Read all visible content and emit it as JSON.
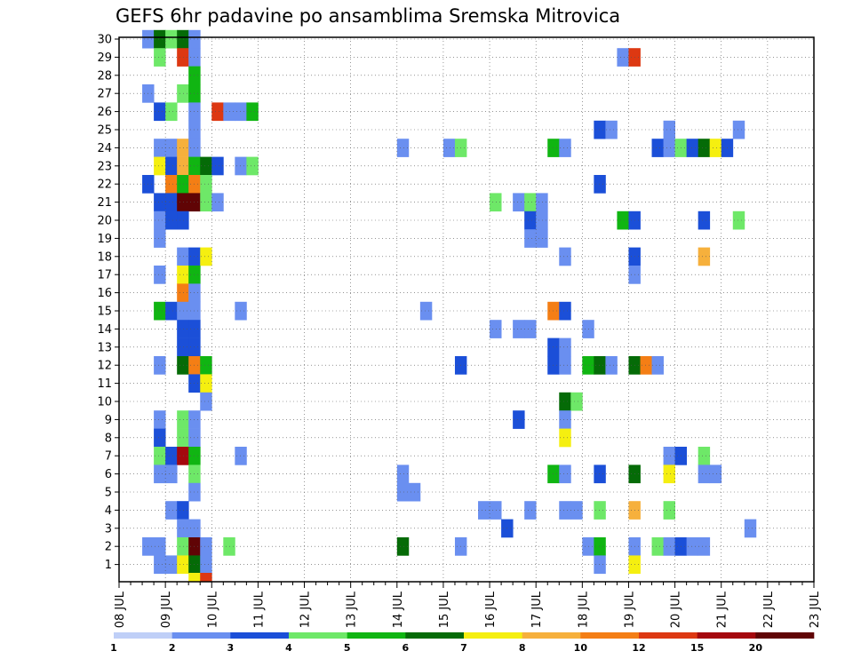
{
  "chart_data": {
    "type": "heatmap",
    "title": "GEFS 6hr padavine po ansamblima Sremska Mitrovica",
    "y_range": [
      1,
      30
    ],
    "y_ticks": [
      "1",
      "2",
      "3",
      "4",
      "5",
      "6",
      "7",
      "8",
      "9",
      "10",
      "11",
      "12",
      "13",
      "14",
      "15",
      "16",
      "17",
      "18",
      "19",
      "20",
      "21",
      "22",
      "23",
      "24",
      "25",
      "26",
      "27",
      "28",
      "29",
      "30"
    ],
    "x_range": [
      "08 JUL 00:00",
      "23 JUL 00:00"
    ],
    "x_step_hours": 6,
    "x_ticks": [
      "08 JUL",
      "09 JUL",
      "10 JUL",
      "11 JUL",
      "12 JUL",
      "13 JUL",
      "14 JUL",
      "15 JUL",
      "16 JUL",
      "17 JUL",
      "18 JUL",
      "19 JUL",
      "20 JUL",
      "21 JUL",
      "22 JUL",
      "23 JUL"
    ],
    "grid": true,
    "legend": {
      "position": "bottom",
      "labels": [
        "1",
        "2",
        "3",
        "4",
        "5",
        "6",
        "7",
        "8",
        "10",
        "12",
        "15",
        "20"
      ],
      "colors": [
        "#bfcff7",
        "#6a8ff0",
        "#1b4fd8",
        "#6ee868",
        "#10b512",
        "#056b07",
        "#f5ef10",
        "#f6b03c",
        "#f47e15",
        "#dd3812",
        "#a5080e",
        "#600405"
      ]
    },
    "cells": [
      [
        30,
        2,
        1
      ],
      [
        30,
        3,
        5
      ],
      [
        30,
        4,
        3
      ],
      [
        30,
        5,
        5
      ],
      [
        30,
        6,
        1
      ],
      [
        29,
        3,
        3
      ],
      [
        29,
        5,
        9
      ],
      [
        29,
        6,
        1
      ],
      [
        29,
        43,
        1
      ],
      [
        29,
        44,
        9
      ],
      [
        28,
        6,
        4
      ],
      [
        27,
        2,
        1
      ],
      [
        27,
        5,
        3
      ],
      [
        27,
        6,
        4
      ],
      [
        26,
        3,
        2
      ],
      [
        26,
        4,
        3
      ],
      [
        26,
        6,
        1
      ],
      [
        26,
        8,
        9
      ],
      [
        26,
        9,
        1
      ],
      [
        26,
        10,
        1
      ],
      [
        26,
        11,
        4
      ],
      [
        25,
        6,
        1
      ],
      [
        25,
        41,
        2
      ],
      [
        25,
        42,
        1
      ],
      [
        25,
        47,
        1
      ],
      [
        25,
        53,
        1
      ],
      [
        24,
        3,
        1
      ],
      [
        24,
        4,
        1
      ],
      [
        24,
        5,
        7
      ],
      [
        24,
        6,
        1
      ],
      [
        24,
        24,
        1
      ],
      [
        24,
        28,
        1
      ],
      [
        24,
        29,
        3
      ],
      [
        24,
        37,
        4
      ],
      [
        24,
        38,
        1
      ],
      [
        24,
        46,
        2
      ],
      [
        24,
        47,
        1
      ],
      [
        24,
        48,
        3
      ],
      [
        24,
        49,
        2
      ],
      [
        24,
        50,
        5
      ],
      [
        24,
        51,
        6
      ],
      [
        24,
        52,
        2
      ],
      [
        23,
        3,
        6
      ],
      [
        23,
        4,
        2
      ],
      [
        23,
        5,
        7
      ],
      [
        23,
        6,
        4
      ],
      [
        23,
        7,
        5
      ],
      [
        23,
        8,
        2
      ],
      [
        23,
        10,
        1
      ],
      [
        23,
        11,
        3
      ],
      [
        22,
        2,
        2
      ],
      [
        22,
        4,
        8
      ],
      [
        22,
        5,
        4
      ],
      [
        22,
        6,
        8
      ],
      [
        22,
        7,
        3
      ],
      [
        22,
        41,
        2
      ],
      [
        21,
        3,
        2
      ],
      [
        21,
        4,
        2
      ],
      [
        21,
        5,
        11
      ],
      [
        21,
        6,
        11
      ],
      [
        21,
        7,
        3
      ],
      [
        21,
        8,
        1
      ],
      [
        21,
        32,
        3
      ],
      [
        21,
        34,
        1
      ],
      [
        21,
        35,
        3
      ],
      [
        21,
        36,
        1
      ],
      [
        20,
        3,
        1
      ],
      [
        20,
        4,
        2
      ],
      [
        20,
        5,
        2
      ],
      [
        20,
        35,
        2
      ],
      [
        20,
        36,
        1
      ],
      [
        20,
        43,
        4
      ],
      [
        20,
        44,
        2
      ],
      [
        20,
        50,
        2
      ],
      [
        20,
        53,
        3
      ],
      [
        19,
        3,
        1
      ],
      [
        19,
        35,
        1
      ],
      [
        19,
        36,
        1
      ],
      [
        18,
        5,
        1
      ],
      [
        18,
        6,
        2
      ],
      [
        18,
        7,
        6
      ],
      [
        18,
        38,
        1
      ],
      [
        18,
        44,
        2
      ],
      [
        18,
        50,
        7
      ],
      [
        17,
        3,
        1
      ],
      [
        17,
        5,
        6
      ],
      [
        17,
        6,
        4
      ],
      [
        17,
        44,
        1
      ],
      [
        16,
        5,
        8
      ],
      [
        16,
        6,
        1
      ],
      [
        15,
        3,
        4
      ],
      [
        15,
        4,
        2
      ],
      [
        15,
        5,
        1
      ],
      [
        15,
        6,
        1
      ],
      [
        15,
        10,
        1
      ],
      [
        15,
        26,
        1
      ],
      [
        15,
        37,
        8
      ],
      [
        15,
        38,
        2
      ],
      [
        14,
        5,
        2
      ],
      [
        14,
        6,
        2
      ],
      [
        14,
        32,
        1
      ],
      [
        14,
        34,
        1
      ],
      [
        14,
        35,
        1
      ],
      [
        14,
        40,
        1
      ],
      [
        13,
        5,
        2
      ],
      [
        13,
        6,
        2
      ],
      [
        13,
        37,
        2
      ],
      [
        13,
        38,
        1
      ],
      [
        12,
        3,
        1
      ],
      [
        12,
        5,
        5
      ],
      [
        12,
        6,
        8
      ],
      [
        12,
        7,
        4
      ],
      [
        12,
        29,
        2
      ],
      [
        12,
        37,
        2
      ],
      [
        12,
        38,
        1
      ],
      [
        12,
        40,
        4
      ],
      [
        12,
        41,
        5
      ],
      [
        12,
        42,
        1
      ],
      [
        12,
        44,
        5
      ],
      [
        12,
        45,
        8
      ],
      [
        12,
        46,
        1
      ],
      [
        11,
        6,
        2
      ],
      [
        11,
        7,
        6
      ],
      [
        10,
        7,
        1
      ],
      [
        10,
        38,
        5
      ],
      [
        10,
        39,
        3
      ],
      [
        9,
        3,
        1
      ],
      [
        9,
        5,
        3
      ],
      [
        9,
        6,
        1
      ],
      [
        9,
        34,
        2
      ],
      [
        9,
        38,
        1
      ],
      [
        8,
        3,
        2
      ],
      [
        8,
        5,
        3
      ],
      [
        8,
        6,
        1
      ],
      [
        8,
        38,
        6
      ],
      [
        7,
        3,
        3
      ],
      [
        7,
        4,
        2
      ],
      [
        7,
        5,
        10
      ],
      [
        7,
        6,
        4
      ],
      [
        7,
        10,
        1
      ],
      [
        7,
        47,
        1
      ],
      [
        7,
        48,
        2
      ],
      [
        7,
        50,
        3
      ],
      [
        6,
        3,
        1
      ],
      [
        6,
        4,
        1
      ],
      [
        6,
        6,
        3
      ],
      [
        6,
        24,
        1
      ],
      [
        6,
        37,
        4
      ],
      [
        6,
        38,
        1
      ],
      [
        6,
        41,
        2
      ],
      [
        6,
        44,
        5
      ],
      [
        6,
        47,
        6
      ],
      [
        6,
        50,
        1
      ],
      [
        6,
        51,
        1
      ],
      [
        5,
        6,
        1
      ],
      [
        5,
        24,
        1
      ],
      [
        5,
        25,
        1
      ],
      [
        4,
        4,
        1
      ],
      [
        4,
        5,
        2
      ],
      [
        4,
        31,
        1
      ],
      [
        4,
        32,
        1
      ],
      [
        4,
        35,
        1
      ],
      [
        4,
        38,
        1
      ],
      [
        4,
        39,
        1
      ],
      [
        4,
        41,
        3
      ],
      [
        4,
        44,
        7
      ],
      [
        4,
        47,
        3
      ],
      [
        3,
        5,
        1
      ],
      [
        3,
        6,
        1
      ],
      [
        3,
        33,
        2
      ],
      [
        3,
        54,
        1
      ],
      [
        2,
        2,
        1
      ],
      [
        2,
        3,
        1
      ],
      [
        2,
        5,
        3
      ],
      [
        2,
        6,
        11
      ],
      [
        2,
        7,
        1
      ],
      [
        2,
        9,
        3
      ],
      [
        2,
        24,
        5
      ],
      [
        2,
        29,
        1
      ],
      [
        2,
        40,
        1
      ],
      [
        2,
        41,
        4
      ],
      [
        2,
        44,
        1
      ],
      [
        2,
        46,
        3
      ],
      [
        2,
        47,
        1
      ],
      [
        2,
        48,
        2
      ],
      [
        2,
        49,
        1
      ],
      [
        2,
        50,
        1
      ],
      [
        1,
        3,
        1
      ],
      [
        1,
        4,
        1
      ],
      [
        1,
        5,
        6
      ],
      [
        1,
        6,
        5
      ],
      [
        1,
        7,
        1
      ],
      [
        1,
        41,
        1
      ],
      [
        1,
        44,
        6
      ],
      [
        0,
        6,
        6
      ],
      [
        0,
        7,
        9
      ]
    ]
  }
}
